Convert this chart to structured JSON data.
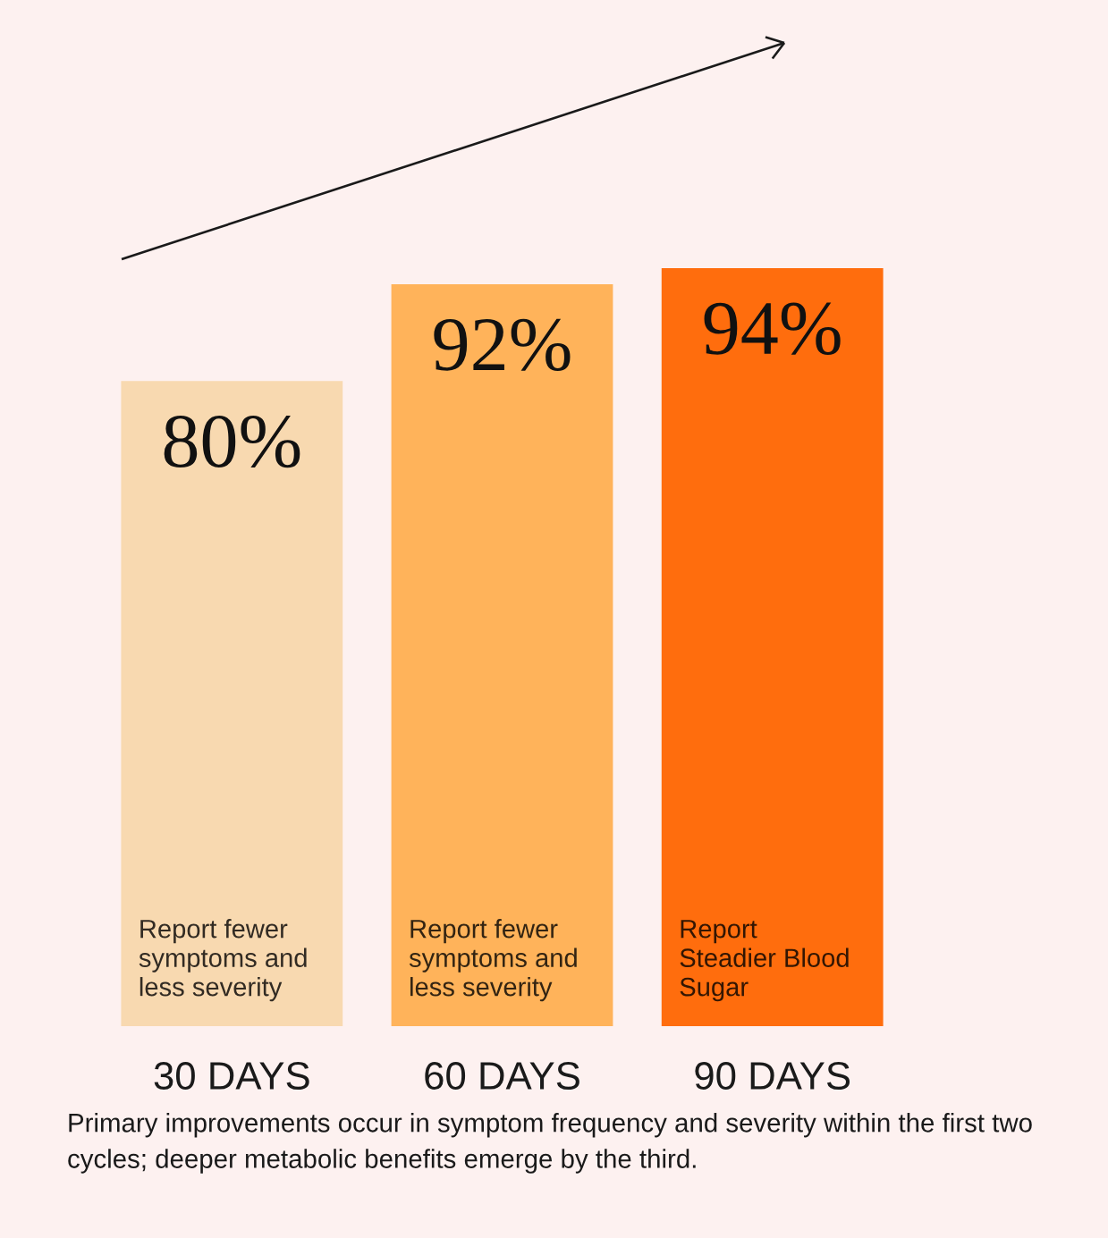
{
  "chart_data": {
    "type": "bar",
    "categories": [
      "30 DAYS",
      "60 DAYS",
      "90 DAYS"
    ],
    "values": [
      80,
      92,
      94
    ],
    "value_labels": [
      "80%",
      "92%",
      "94%"
    ],
    "colors": [
      "#f8d9b0",
      "#ffb35a",
      "#ff6d0d"
    ],
    "annotations": [
      "Report fewer\nsymptoms and\nless severity",
      "Report fewer\nsymptoms and\nless severity",
      "Report\nSteadier Blood\nSugar",
      "Primary improvements occur in symptom frequency and severity within the first two cycles; deeper metabolic benefits emerge by the third."
    ]
  }
}
